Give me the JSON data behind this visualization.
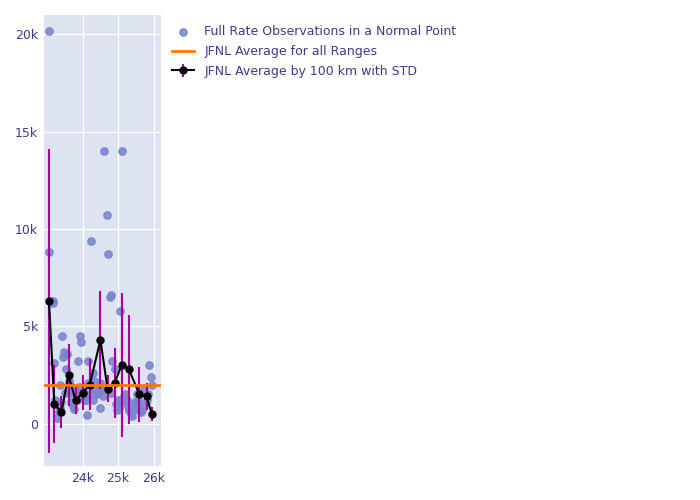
{
  "plot_bg_color": "#dde3f0",
  "scatter_color": "#7986cb",
  "scatter_size": 28,
  "line_color": "#000000",
  "errorbar_color": "#aa00aa",
  "hline_color": "#ff7700",
  "hline_value": 2000,
  "xlim": [
    22900,
    26200
  ],
  "ylim": [
    -2200,
    21000
  ],
  "xticks": [
    24000,
    25000,
    26000
  ],
  "yticks": [
    0,
    5000,
    10000,
    15000,
    20000
  ],
  "legend_labels": [
    "Full Rate Observations in a Normal Point",
    "JFNL Average by 100 km with STD",
    "JFNL Average for all Ranges"
  ],
  "scatter_x": [
    23050,
    23060,
    23150,
    23160,
    23230,
    23280,
    23320,
    23350,
    23380,
    23420,
    23450,
    23480,
    23530,
    23570,
    23600,
    23640,
    23680,
    23720,
    23760,
    23800,
    23840,
    23880,
    23920,
    23960,
    24000,
    24040,
    24080,
    24120,
    24160,
    24200,
    24240,
    24280,
    24320,
    24360,
    24400,
    24440,
    24480,
    24520,
    24560,
    24600,
    24640,
    24680,
    24720,
    24760,
    24800,
    24840,
    24900,
    24940,
    24960,
    25010,
    25050,
    25080,
    25120,
    25160,
    25200,
    25240,
    25280,
    25320,
    25360,
    25400,
    25440,
    25480,
    25520,
    25560,
    25600,
    25640,
    25680,
    25720,
    25760,
    25800,
    25840,
    25880,
    25920,
    25960,
    23200,
    23350,
    23500,
    23650,
    23750,
    23900,
    24050,
    24150,
    24300,
    24500,
    24700,
    24800,
    25000,
    25100,
    25300,
    25500
  ],
  "scatter_y": [
    20200,
    8800,
    6300,
    6200,
    1200,
    300,
    600,
    800,
    1100,
    4500,
    3400,
    3700,
    2800,
    3600,
    2200,
    1600,
    1100,
    900,
    750,
    1700,
    1200,
    3200,
    4500,
    4200,
    1700,
    1400,
    1200,
    450,
    2100,
    1500,
    9400,
    1200,
    2200,
    1800,
    1500,
    1600,
    2100,
    1900,
    1400,
    14000,
    1800,
    10700,
    8700,
    6500,
    6600,
    3200,
    2800,
    1000,
    700,
    800,
    5800,
    1200,
    1100,
    1400,
    1500,
    1200,
    900,
    700,
    500,
    400,
    700,
    1100,
    1500,
    1200,
    800,
    600,
    700,
    1800,
    1000,
    1200,
    1500,
    3000,
    2400,
    2000,
    3100,
    2000,
    1600,
    2000,
    1600,
    1900,
    1200,
    3200,
    2600,
    800,
    1800,
    1600,
    1200,
    14000,
    700,
    1100
  ],
  "avg_x": [
    23050,
    23200,
    23400,
    23600,
    23800,
    24000,
    24200,
    24500,
    24700,
    24900,
    25100,
    25300,
    25600,
    25800,
    25950
  ],
  "avg_y": [
    6300,
    1000,
    600,
    2500,
    1200,
    1600,
    2000,
    4300,
    1800,
    2100,
    3000,
    2800,
    1500,
    1400,
    500
  ],
  "avg_std": [
    7800,
    2000,
    800,
    1600,
    700,
    900,
    1300,
    2500,
    700,
    1800,
    3700,
    2800,
    1400,
    700,
    350
  ]
}
